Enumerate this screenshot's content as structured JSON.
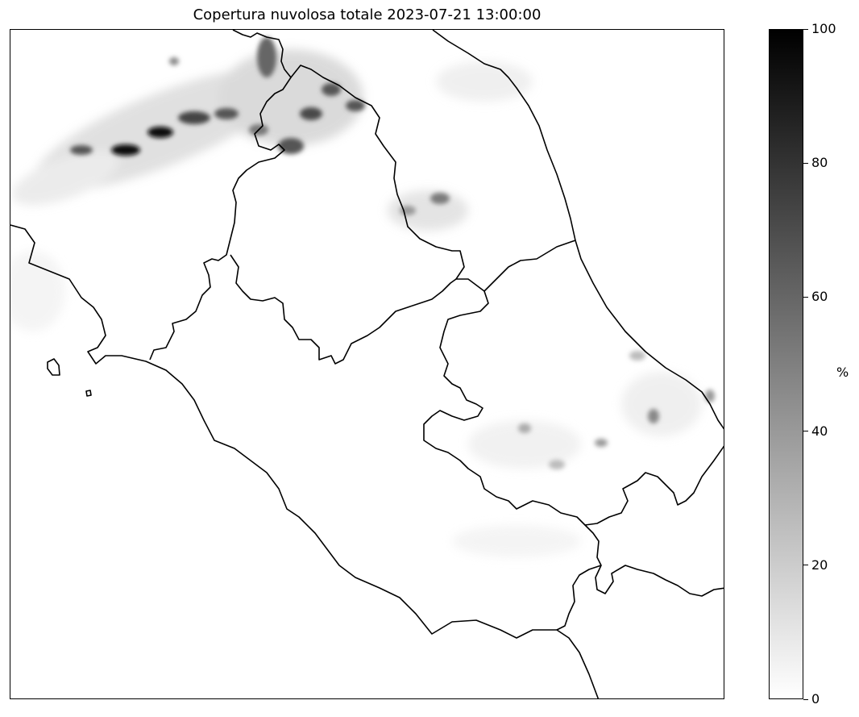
{
  "map": {
    "title": "Copertura nuvolosa totale 2023-07-21 13:00:00"
  },
  "colorbar": {
    "unit": "%",
    "ticks": [
      "0",
      "20",
      "40",
      "60",
      "80",
      "100"
    ],
    "range": [
      0,
      100
    ],
    "colormap": "greys",
    "low_color": "#ffffff",
    "high_color": "#000000"
  },
  "colors": {
    "boundaries": "#000000",
    "background": "#ffffff"
  }
}
